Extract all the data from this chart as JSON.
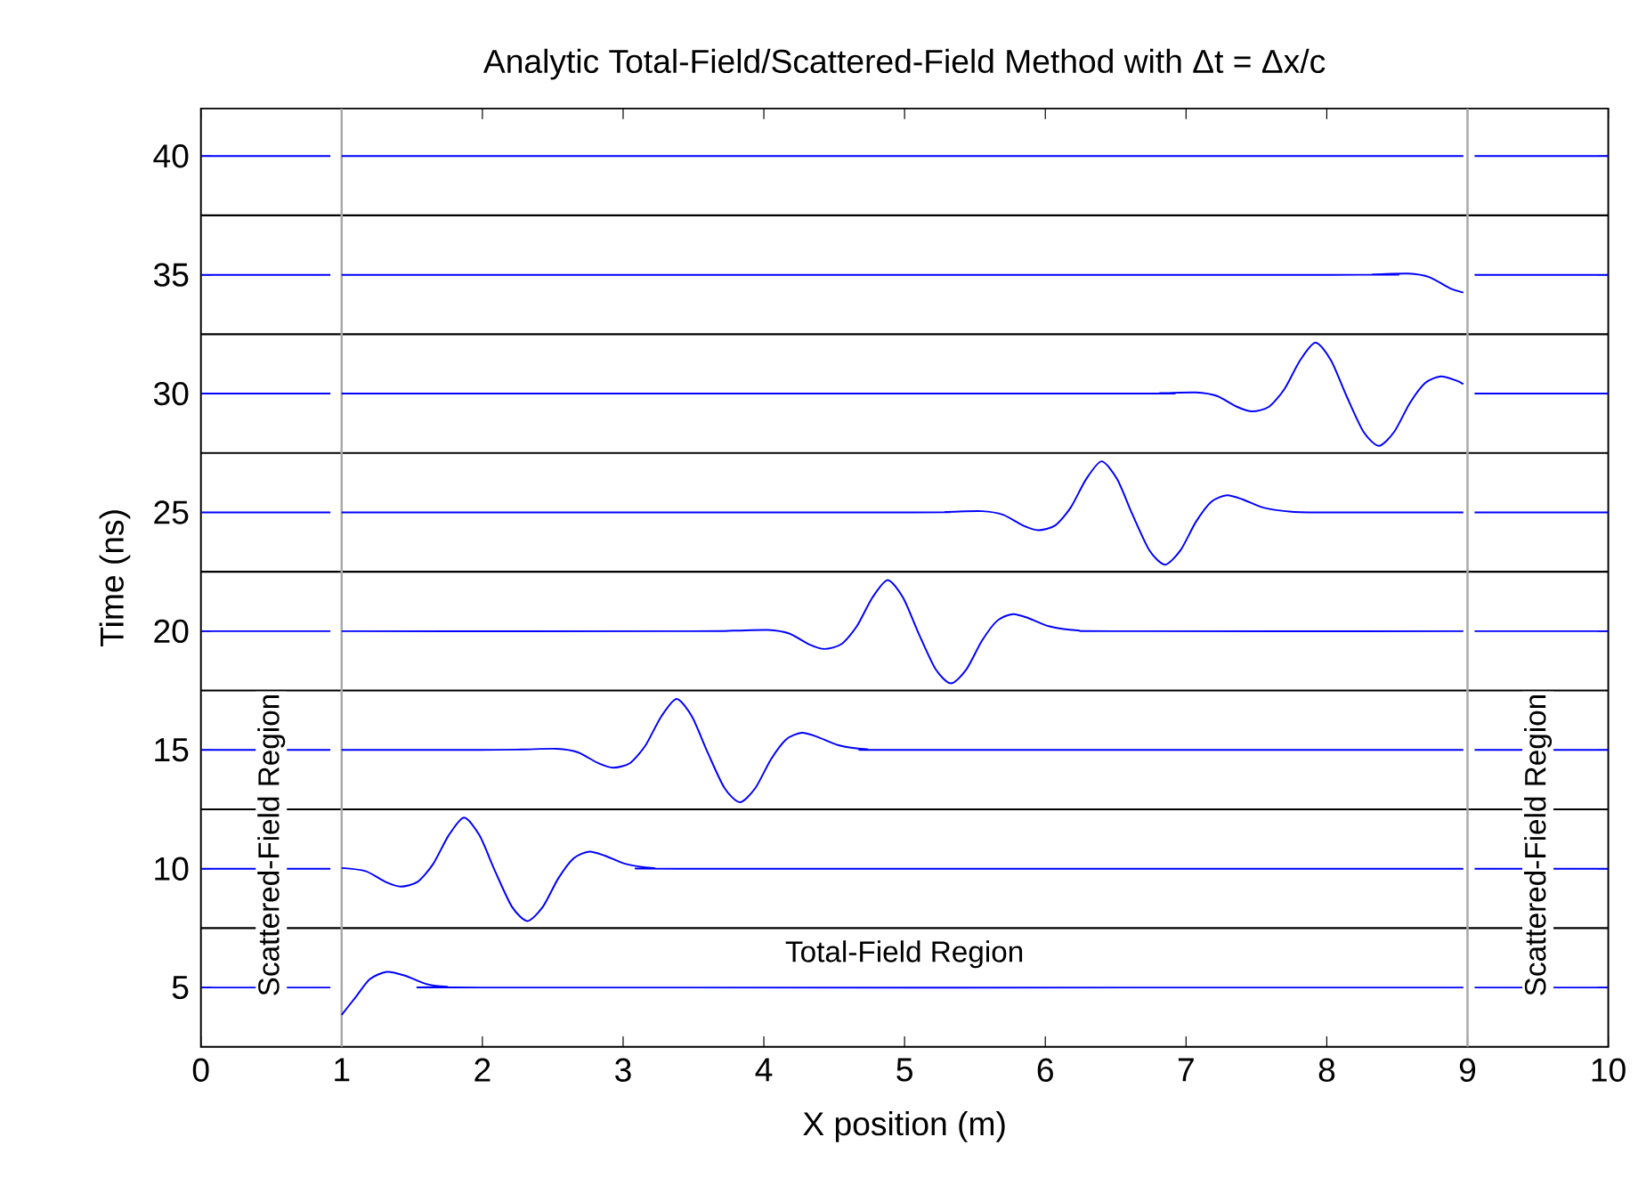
{
  "chart_data": {
    "type": "line",
    "title": "Analytic Total-Field/Scattered-Field Method with Δt = Δx/c",
    "xlabel": "X position (m)",
    "ylabel": "Time (ns)",
    "xlim": [
      0,
      10
    ],
    "ylim": [
      2.5,
      42
    ],
    "xticks": [
      0,
      1,
      2,
      3,
      4,
      5,
      6,
      7,
      8,
      9,
      10
    ],
    "yticks": [
      5,
      10,
      15,
      20,
      25,
      30,
      35,
      40
    ],
    "marker": "none",
    "line_style": "solid",
    "series": [
      {
        "color": "#0000ff",
        "x": [
          0,
          0.92,
          0.96,
          1,
          1.1,
          1.2,
          1.32,
          1.45,
          1.6,
          1.75,
          2,
          8.97,
          9.01,
          9.05,
          10
        ],
        "values": [
          5,
          5,
          null,
          3.85,
          4.6,
          5.35,
          5.66,
          5.5,
          5.15,
          5.03,
          5,
          5,
          null,
          5,
          5
        ]
      },
      {
        "color": "#0000ff",
        "x": [
          0,
          0.92,
          0.96,
          1,
          1.17,
          1.31,
          1.42,
          1.54,
          1.65,
          1.76,
          1.87,
          1.98,
          2.09,
          2.21,
          2.32,
          2.43,
          2.54,
          2.65,
          2.76,
          2.87,
          3.02,
          3.22,
          3.47,
          8.97,
          9.01,
          9.05,
          10
        ],
        "values": [
          10,
          10,
          null,
          10.03,
          9.9,
          9.45,
          9.25,
          9.45,
          10.2,
          11.4,
          12.15,
          11.4,
          9.9,
          8.4,
          7.8,
          8.4,
          9.6,
          10.45,
          10.72,
          10.55,
          10.2,
          10.03,
          10,
          10,
          null,
          10,
          10
        ]
      },
      {
        "color": "#0000ff",
        "x": [
          0,
          0.92,
          0.96,
          1,
          1.98,
          2.28,
          2.53,
          2.68,
          2.82,
          2.93,
          3.05,
          3.16,
          3.27,
          3.38,
          3.49,
          3.6,
          3.72,
          3.83,
          3.94,
          4.05,
          4.16,
          4.27,
          4.38,
          4.53,
          4.73,
          4.98,
          8.97,
          9.01,
          9.05,
          10
        ],
        "values": [
          15,
          15,
          null,
          15,
          15,
          15.02,
          15.05,
          14.9,
          14.45,
          14.25,
          14.45,
          15.2,
          16.4,
          17.15,
          16.4,
          14.9,
          13.4,
          12.8,
          13.4,
          14.6,
          15.45,
          15.72,
          15.55,
          15.2,
          15.03,
          15,
          15,
          null,
          15,
          15
        ]
      },
      {
        "color": "#0000ff",
        "x": [
          0,
          0.92,
          0.96,
          1,
          3.48,
          3.78,
          4.03,
          4.18,
          4.32,
          4.43,
          4.55,
          4.66,
          4.77,
          4.88,
          4.99,
          5.1,
          5.22,
          5.33,
          5.44,
          5.55,
          5.66,
          5.77,
          5.88,
          6.03,
          6.23,
          6.48,
          8.97,
          9.01,
          9.05,
          10
        ],
        "values": [
          20,
          20,
          null,
          20,
          20,
          20.02,
          20.05,
          19.9,
          19.45,
          19.25,
          19.45,
          20.2,
          21.4,
          22.15,
          21.4,
          19.9,
          18.4,
          17.8,
          18.4,
          19.6,
          20.45,
          20.72,
          20.55,
          20.2,
          20.03,
          20,
          20,
          null,
          20,
          20
        ]
      },
      {
        "color": "#0000ff",
        "x": [
          0,
          0.92,
          0.96,
          1,
          5.0,
          5.3,
          5.55,
          5.7,
          5.84,
          5.95,
          6.07,
          6.18,
          6.29,
          6.4,
          6.51,
          6.62,
          6.74,
          6.85,
          6.96,
          7.07,
          7.18,
          7.29,
          7.4,
          7.55,
          7.75,
          8.0,
          8.97,
          9.01,
          9.05,
          10
        ],
        "values": [
          25,
          25,
          null,
          25,
          25,
          25.02,
          25.05,
          24.9,
          24.45,
          24.25,
          24.45,
          25.2,
          26.4,
          27.15,
          26.4,
          24.9,
          23.4,
          22.8,
          23.4,
          24.6,
          25.45,
          25.72,
          25.55,
          25.2,
          25.03,
          25,
          25,
          null,
          25,
          25
        ]
      },
      {
        "color": "#0000ff",
        "x": [
          0,
          0.92,
          0.96,
          1,
          6.52,
          6.82,
          7.07,
          7.22,
          7.36,
          7.47,
          7.59,
          7.7,
          7.81,
          7.92,
          8.03,
          8.14,
          8.26,
          8.37,
          8.48,
          8.59,
          8.7,
          8.81,
          8.92,
          8.97,
          9.01,
          9.05,
          10
        ],
        "values": [
          30,
          30,
          null,
          30,
          30,
          30.02,
          30.05,
          29.9,
          29.45,
          29.25,
          29.45,
          30.2,
          31.4,
          32.15,
          31.4,
          29.9,
          28.4,
          27.8,
          28.4,
          29.6,
          30.45,
          30.72,
          30.55,
          30.4,
          null,
          30,
          30
        ]
      },
      {
        "color": "#0000ff",
        "x": [
          0,
          0.92,
          0.96,
          1,
          8.03,
          8.33,
          8.58,
          8.73,
          8.87,
          8.97,
          9.01,
          9.05,
          10
        ],
        "values": [
          35,
          35,
          null,
          35,
          35,
          35.02,
          35.05,
          34.9,
          34.45,
          34.25,
          null,
          35,
          35
        ]
      },
      {
        "color": "#0000ff",
        "x": [
          0,
          0.92,
          0.96,
          1,
          8.97,
          9.01,
          9.05,
          10
        ],
        "values": [
          40,
          40,
          null,
          40,
          40,
          null,
          40,
          40
        ]
      }
    ],
    "ref_lines": [
      {
        "axis": "y",
        "value": 7.5,
        "color": "#000000"
      },
      {
        "axis": "y",
        "value": 12.5,
        "color": "#000000"
      },
      {
        "axis": "y",
        "value": 17.5,
        "color": "#000000"
      },
      {
        "axis": "y",
        "value": 22.5,
        "color": "#000000"
      },
      {
        "axis": "y",
        "value": 27.5,
        "color": "#000000"
      },
      {
        "axis": "y",
        "value": 32.5,
        "color": "#000000"
      },
      {
        "axis": "y",
        "value": 37.5,
        "color": "#000000"
      },
      {
        "axis": "x",
        "value": 1,
        "color": "#aaaaaa"
      },
      {
        "axis": "x",
        "value": 9,
        "color": "#aaaaaa"
      }
    ],
    "annotations": [
      "Scattered-Field Region",
      "Scattered-Field Region",
      "Total-Field Region"
    ]
  }
}
